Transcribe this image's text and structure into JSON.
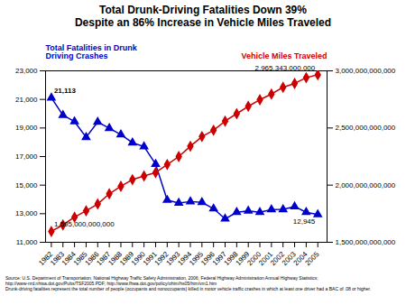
{
  "chart_data": {
    "type": "line",
    "title": "Total Drunk-Driving Fatalities Down 39%\nDespite an 86% Increase in Vehicle Miles Traveled",
    "x": [
      1982,
      1983,
      1984,
      1985,
      1986,
      1987,
      1988,
      1989,
      1990,
      1991,
      1992,
      1993,
      1994,
      1995,
      1996,
      1997,
      1998,
      1999,
      2000,
      2001,
      2002,
      2003,
      2004,
      2005
    ],
    "xlim": [
      1981.5,
      2005.8
    ],
    "xticks": [
      1982,
      1983,
      1984,
      1985,
      1986,
      1987,
      1988,
      1989,
      1990,
      1991,
      1992,
      1993,
      1994,
      1995,
      1996,
      1997,
      1998,
      1999,
      2000,
      2001,
      2002,
      2003,
      2004,
      2005
    ],
    "ylim": [
      11000,
      23000
    ],
    "yticks": [
      {
        "value": 11000,
        "label": "11,000"
      },
      {
        "value": 13000,
        "label": "13,000"
      },
      {
        "value": 15000,
        "label": "15,000"
      },
      {
        "value": 17000,
        "label": "17,000"
      },
      {
        "value": 19000,
        "label": "19,000"
      },
      {
        "value": 21000,
        "label": "21,000"
      },
      {
        "value": 23000,
        "label": "23,000"
      }
    ],
    "y2lim": [
      1500000000000,
      3000000000000
    ],
    "y2ticks": [
      {
        "value": 1500000000000,
        "label": "1,500,000,000,000"
      },
      {
        "value": 2000000000000,
        "label": "2,000,000,000,000"
      },
      {
        "value": 2500000000000,
        "label": "2,500,000,000,000"
      },
      {
        "value": 3000000000000,
        "label": "3,000,000,000,000"
      }
    ],
    "grid": false,
    "series": [
      {
        "name": "Total Fatalities in Drunk\nDriving Crashes",
        "color": "#0000cc",
        "marker": "triangle",
        "axis": "y",
        "values": [
          21113,
          19900,
          19450,
          18350,
          19420,
          18980,
          18540,
          17970,
          17700,
          16470,
          13950,
          13750,
          13850,
          13800,
          13350,
          12640,
          13100,
          13200,
          13100,
          13290,
          13300,
          13500,
          13100,
          12945
        ]
      },
      {
        "name": "Vehicle Miles Traveled",
        "color": "#cc0000",
        "marker": "diamond",
        "axis": "y2",
        "values": [
          1595000000000,
          1652000000000,
          1720000000000,
          1775000000000,
          1835000000000,
          1924000000000,
          1990000000000,
          2048000000000,
          2080000000000,
          2110000000000,
          2180000000000,
          2250000000000,
          2340000000000,
          2425000000000,
          2480000000000,
          2560000000000,
          2625000000000,
          2690000000000,
          2747000000000,
          2797000000000,
          2856000000000,
          2890000000000,
          2940000000000,
          2965343000000
        ]
      }
    ],
    "annotations": [
      {
        "text": "21,113",
        "x": 1982,
        "y": 21113,
        "axis": "y"
      },
      {
        "text": "12,945",
        "x": 2005,
        "y": 12945,
        "axis": "y"
      },
      {
        "text": "1,595,000,000,000",
        "x": 1982,
        "y": 1595000000000,
        "axis": "y2"
      },
      {
        "text": "2,965,343,000,000",
        "x": 2005,
        "y": 2965343000000,
        "axis": "y2"
      }
    ],
    "caption": "Source: U.S. Department of Transportation, National Highway Traffic Safety Administration, 2006; Federal Highway Administration Annual Highway Statistics;\nhttp://www-nrd.nhtsa.dot.gov/Pubs/TSF2005.PDF;  http://www.fhwa.dot.gov/policy/ohim/hs05/htm/vm1.htm\nDrunk-driving fatalities represent the total number of people (occupants and nonoccupants) killed in motor vehicle traffic crashes in which at least one driver had a BAC of .08 or higher."
  }
}
